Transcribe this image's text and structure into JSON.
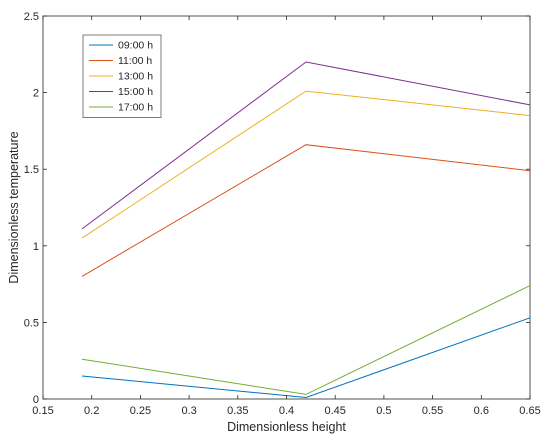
{
  "chart_data": {
    "type": "line",
    "xlabel": "Dimensionless height",
    "ylabel": "Dimensionless temperature",
    "xlim": [
      0.15,
      0.65
    ],
    "ylim": [
      0,
      2.5
    ],
    "xticks": [
      "0.15",
      "0.2",
      "0.25",
      "0.3",
      "0.35",
      "0.4",
      "0.45",
      "0.5",
      "0.55",
      "0.6",
      "0.65"
    ],
    "yticks": [
      "0",
      "0.5",
      "1",
      "1.5",
      "2",
      "2.5"
    ],
    "x": [
      0.19,
      0.42,
      0.65
    ],
    "grid": false,
    "legend_position": "top-left",
    "series": [
      {
        "name": "09:00 h",
        "color": "#0072BD",
        "values": [
          0.15,
          0.01,
          0.53
        ]
      },
      {
        "name": "11:00 h",
        "color": "#D95319",
        "values": [
          0.8,
          1.66,
          1.49
        ]
      },
      {
        "name": "13:00 h",
        "color": "#EDB120",
        "values": [
          1.05,
          2.01,
          1.85
        ]
      },
      {
        "name": "15:00 h",
        "color": "#7E2F8E",
        "values": [
          1.11,
          2.2,
          1.92
        ]
      },
      {
        "name": "17:00 h",
        "color": "#77AC30",
        "values": [
          0.26,
          0.03,
          0.74
        ]
      }
    ]
  }
}
